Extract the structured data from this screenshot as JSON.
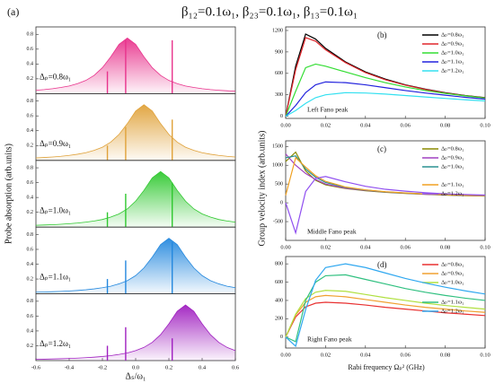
{
  "title": "β₁₂=0.1ω₁, β₂₃=0.1ω₁, β₁₃=0.1ω₁",
  "panel_a": {
    "label": "(a)",
    "y_label": "Probe absorption (arb.units)",
    "x_label": "Δₛ/ω₁"
  },
  "panel_right": {
    "y_label": "Group velocity index (arb.units)",
    "x_label": "Rabi frequency Ωₚ² (GHz)"
  },
  "chart_data": [
    {
      "type": "area",
      "label": "Δₚ=0.8ω₁",
      "color": "#e8338c",
      "x": [
        -0.6,
        -0.55,
        -0.5,
        -0.45,
        -0.4,
        -0.35,
        -0.3,
        -0.25,
        -0.2,
        -0.15,
        -0.1,
        -0.05,
        0,
        0.05,
        0.1,
        0.15,
        0.2,
        0.25,
        0.3,
        0.35,
        0.4,
        0.45,
        0.5,
        0.55,
        0.6
      ],
      "values": [
        0.046,
        0.055,
        0.067,
        0.083,
        0.103,
        0.135,
        0.178,
        0.246,
        0.35,
        0.496,
        0.665,
        0.75,
        0.665,
        0.496,
        0.35,
        0.246,
        0.178,
        0.135,
        0.103,
        0.083,
        0.067,
        0.055,
        0.046,
        0.039,
        0.033
      ],
      "spike_x": [
        -0.17,
        -0.06,
        0.22
      ],
      "spike_values": [
        0.3,
        0.72,
        0.72
      ],
      "xlim": [
        -0.6,
        0.6
      ],
      "ylim": [
        0,
        0.9
      ],
      "yticks": [
        0.2,
        0.4,
        0.6,
        0.8
      ]
    },
    {
      "type": "area",
      "label": "Δₚ=0.9ω₁",
      "color": "#e0a23a",
      "x": [
        -0.6,
        -0.55,
        -0.5,
        -0.45,
        -0.4,
        -0.35,
        -0.3,
        -0.25,
        -0.2,
        -0.15,
        -0.1,
        -0.05,
        0,
        0.05,
        0.1,
        0.15,
        0.2,
        0.25,
        0.3,
        0.35,
        0.4,
        0.45,
        0.5,
        0.55,
        0.6
      ],
      "values": [
        0.033,
        0.039,
        0.046,
        0.055,
        0.067,
        0.083,
        0.103,
        0.135,
        0.178,
        0.246,
        0.35,
        0.496,
        0.665,
        0.75,
        0.665,
        0.496,
        0.35,
        0.246,
        0.178,
        0.135,
        0.103,
        0.083,
        0.067,
        0.055,
        0.046
      ],
      "spike_x": [
        -0.17,
        -0.06,
        0.22
      ],
      "spike_values": [
        0.2,
        0.45,
        0.55
      ],
      "xlim": [
        -0.6,
        0.6
      ],
      "ylim": [
        0,
        0.9
      ],
      "yticks": [
        0.2,
        0.4,
        0.6,
        0.8
      ]
    },
    {
      "type": "area",
      "label": "Δₚ=1.0ω₁",
      "color": "#2fc82f",
      "x": [
        -0.6,
        -0.55,
        -0.5,
        -0.45,
        -0.4,
        -0.35,
        -0.3,
        -0.25,
        -0.2,
        -0.15,
        -0.1,
        -0.05,
        0,
        0.05,
        0.1,
        0.15,
        0.2,
        0.25,
        0.3,
        0.35,
        0.4,
        0.45,
        0.5,
        0.55,
        0.6
      ],
      "values": [
        0.025,
        0.029,
        0.033,
        0.039,
        0.046,
        0.055,
        0.067,
        0.083,
        0.103,
        0.135,
        0.178,
        0.246,
        0.35,
        0.496,
        0.665,
        0.75,
        0.665,
        0.496,
        0.35,
        0.246,
        0.178,
        0.135,
        0.103,
        0.083,
        0.067
      ],
      "spike_x": [
        -0.17,
        -0.06,
        0.22
      ],
      "spike_values": [
        0.2,
        0.45,
        0.6
      ],
      "xlim": [
        -0.6,
        0.6
      ],
      "ylim": [
        0,
        0.9
      ],
      "yticks": [
        0.2,
        0.4,
        0.6,
        0.8
      ]
    },
    {
      "type": "area",
      "label": "Δₚ=1.1ω₁",
      "color": "#2488de",
      "x": [
        -0.6,
        -0.55,
        -0.5,
        -0.45,
        -0.4,
        -0.35,
        -0.3,
        -0.25,
        -0.2,
        -0.15,
        -0.1,
        -0.05,
        0,
        0.05,
        0.1,
        0.15,
        0.2,
        0.25,
        0.3,
        0.35,
        0.4,
        0.45,
        0.5,
        0.55,
        0.6
      ],
      "values": [
        0.022,
        0.025,
        0.029,
        0.033,
        0.039,
        0.046,
        0.055,
        0.067,
        0.083,
        0.103,
        0.135,
        0.178,
        0.246,
        0.35,
        0.496,
        0.665,
        0.75,
        0.665,
        0.496,
        0.35,
        0.246,
        0.178,
        0.135,
        0.103,
        0.083
      ],
      "spike_x": [
        -0.17,
        -0.06,
        0.22
      ],
      "spike_values": [
        0.2,
        0.45,
        0.7
      ],
      "xlim": [
        -0.6,
        0.6
      ],
      "ylim": [
        0,
        0.9
      ],
      "yticks": [
        0.2,
        0.4,
        0.6,
        0.8
      ]
    },
    {
      "type": "area",
      "label": "Δₚ=1.2ω₁",
      "color": "#a020c0",
      "x": [
        -0.6,
        -0.55,
        -0.5,
        -0.45,
        -0.4,
        -0.35,
        -0.3,
        -0.25,
        -0.2,
        -0.15,
        -0.1,
        -0.05,
        0,
        0.05,
        0.1,
        0.15,
        0.2,
        0.25,
        0.3,
        0.35,
        0.4,
        0.45,
        0.5,
        0.55,
        0.6
      ],
      "values": [
        0.017,
        0.019,
        0.022,
        0.025,
        0.029,
        0.033,
        0.039,
        0.046,
        0.055,
        0.067,
        0.083,
        0.103,
        0.135,
        0.178,
        0.246,
        0.35,
        0.496,
        0.665,
        0.75,
        0.665,
        0.496,
        0.35,
        0.246,
        0.178,
        0.135
      ],
      "spike_x": [
        -0.17,
        -0.06,
        0.22
      ],
      "spike_values": [
        0.2,
        0.45,
        0.3
      ],
      "xlim": [
        -0.6,
        0.6
      ],
      "ylim": [
        0,
        0.9
      ],
      "yticks": [
        0.2,
        0.4,
        0.6,
        0.8
      ],
      "xticks": [
        -0.6,
        -0.4,
        -0.2,
        {
          "value": 0,
          "label": "0.0"
        },
        0.2,
        0.4,
        0.6
      ]
    },
    {
      "type": "line",
      "label": "(b)",
      "annotation": "Left Fano peak",
      "x": [
        0,
        0.005,
        0.01,
        0.015,
        0.02,
        0.03,
        0.04,
        0.05,
        0.06,
        0.07,
        0.08,
        0.09,
        0.1
      ],
      "series": [
        {
          "name": "Δₚ=0.8ω₁",
          "color": "#000000",
          "values": [
            0,
            700,
            1150,
            1080,
            950,
            760,
            620,
            520,
            440,
            380,
            330,
            290,
            260
          ]
        },
        {
          "name": "Δₚ=0.9ω₁",
          "color": "#e0262b",
          "values": [
            0,
            650,
            1100,
            1050,
            930,
            750,
            610,
            510,
            435,
            375,
            325,
            288,
            258
          ]
        },
        {
          "name": "Δₚ=1.0ω₁",
          "color": "#33dd33",
          "values": [
            0,
            350,
            680,
            730,
            700,
            620,
            540,
            470,
            410,
            360,
            320,
            285,
            255
          ]
        },
        {
          "name": "Δₚ=1.1ω₁",
          "color": "#2222dd",
          "values": [
            0,
            150,
            330,
            440,
            480,
            470,
            440,
            400,
            360,
            325,
            295,
            265,
            240
          ]
        },
        {
          "name": "Δₚ=1.2ω₁",
          "color": "#33e0f0",
          "values": [
            0,
            80,
            180,
            260,
            300,
            330,
            325,
            310,
            290,
            270,
            250,
            230,
            215
          ]
        }
      ],
      "xlim": [
        0,
        0.1
      ],
      "ylim": [
        -30,
        1250
      ],
      "yticks": [
        0,
        300,
        600,
        900,
        1200
      ],
      "xticks": [
        {
          "value": 0,
          "label": "0.00"
        },
        {
          "value": 0.02,
          "label": "0.02"
        },
        {
          "value": 0.04,
          "label": "0.04"
        },
        {
          "value": 0.06,
          "label": "0.06"
        },
        {
          "value": 0.08,
          "label": "0.08"
        },
        {
          "value": 0.1,
          "label": "0.10"
        }
      ]
    },
    {
      "type": "line",
      "label": "(c)",
      "annotation": "Middle Fano peak",
      "x": [
        0,
        0.005,
        0.01,
        0.015,
        0.02,
        0.03,
        0.04,
        0.05,
        0.06,
        0.07,
        0.08,
        0.09,
        0.1
      ],
      "series": [
        {
          "name": "Δₚ=0.8ω₁",
          "color": "#8a8a00",
          "values": [
            1100,
            1350,
            850,
            600,
            480,
            380,
            320,
            280,
            250,
            225,
            205,
            190,
            180
          ]
        },
        {
          "name": "Δₚ=0.9ω₁",
          "color": "#a040c0",
          "values": [
            1300,
            1000,
            780,
            620,
            500,
            390,
            330,
            285,
            255,
            230,
            210,
            195,
            185
          ]
        },
        {
          "name": "Δₚ=1.0ω₁",
          "color": "#2a9090",
          "values": [
            1200,
            1250,
            900,
            680,
            540,
            410,
            340,
            290,
            260,
            235,
            215,
            198,
            188
          ]
        },
        {
          "name": "Δₚ=1.1ω₁",
          "color": "#f0a020",
          "values": [
            200,
            1200,
            950,
            720,
            570,
            420,
            345,
            295,
            262,
            236,
            216,
            200,
            190
          ]
        },
        {
          "name": "Δₚ=1.2ω₁",
          "color": "#9050f0",
          "values": [
            0,
            -800,
            300,
            650,
            700,
            560,
            440,
            360,
            310,
            270,
            240,
            220,
            205
          ]
        }
      ],
      "xlim": [
        0,
        0.1
      ],
      "ylim": [
        -1000,
        1650
      ],
      "yticks": [
        -500,
        0,
        500,
        1000,
        1500
      ],
      "xticks": [
        {
          "value": 0,
          "label": "0.00"
        },
        {
          "value": 0.02,
          "label": "0.02"
        },
        {
          "value": 0.04,
          "label": "0.04"
        },
        {
          "value": 0.06,
          "label": "0.06"
        },
        {
          "value": 0.08,
          "label": "0.08"
        },
        {
          "value": 0.1,
          "label": "0.10"
        }
      ]
    },
    {
      "type": "line",
      "label": "(d)",
      "annotation": "Right Fano peak",
      "x": [
        0,
        0.005,
        0.01,
        0.015,
        0.02,
        0.03,
        0.04,
        0.05,
        0.06,
        0.07,
        0.08,
        0.09,
        0.1
      ],
      "series": [
        {
          "name": "Δₚ=0.8ω₁",
          "color": "#e83030",
          "values": [
            0,
            220,
            330,
            370,
            380,
            370,
            350,
            325,
            305,
            285,
            265,
            250,
            235
          ]
        },
        {
          "name": "Δₚ=0.9ω₁",
          "color": "#f0a030",
          "values": [
            0,
            240,
            380,
            440,
            455,
            440,
            410,
            380,
            350,
            325,
            305,
            285,
            270
          ]
        },
        {
          "name": "Δₚ=1.0ω₁",
          "color": "#b0e040",
          "values": [
            0,
            250,
            420,
            490,
            510,
            500,
            465,
            430,
            400,
            370,
            345,
            325,
            305
          ]
        },
        {
          "name": "Δₚ=1.1ω₁",
          "color": "#30c080",
          "values": [
            0,
            -50,
            400,
            600,
            670,
            680,
            630,
            580,
            530,
            490,
            455,
            425,
            400
          ]
        },
        {
          "name": "Δₚ=1.2ω₁",
          "color": "#30a8f0",
          "values": [
            0,
            -100,
            300,
            620,
            760,
            800,
            760,
            700,
            640,
            590,
            545,
            505,
            470
          ]
        }
      ],
      "xlim": [
        0,
        0.1
      ],
      "ylim": [
        -120,
        880
      ],
      "yticks": [
        0,
        200,
        400,
        600,
        800
      ],
      "xticks": [
        {
          "value": 0,
          "label": "0.00"
        },
        {
          "value": 0.02,
          "label": "0.02"
        },
        {
          "value": 0.04,
          "label": "0.04"
        },
        {
          "value": 0.06,
          "label": "0.06"
        },
        {
          "value": 0.08,
          "label": "0.08"
        },
        {
          "value": 0.1,
          "label": "0.10"
        }
      ]
    }
  ]
}
